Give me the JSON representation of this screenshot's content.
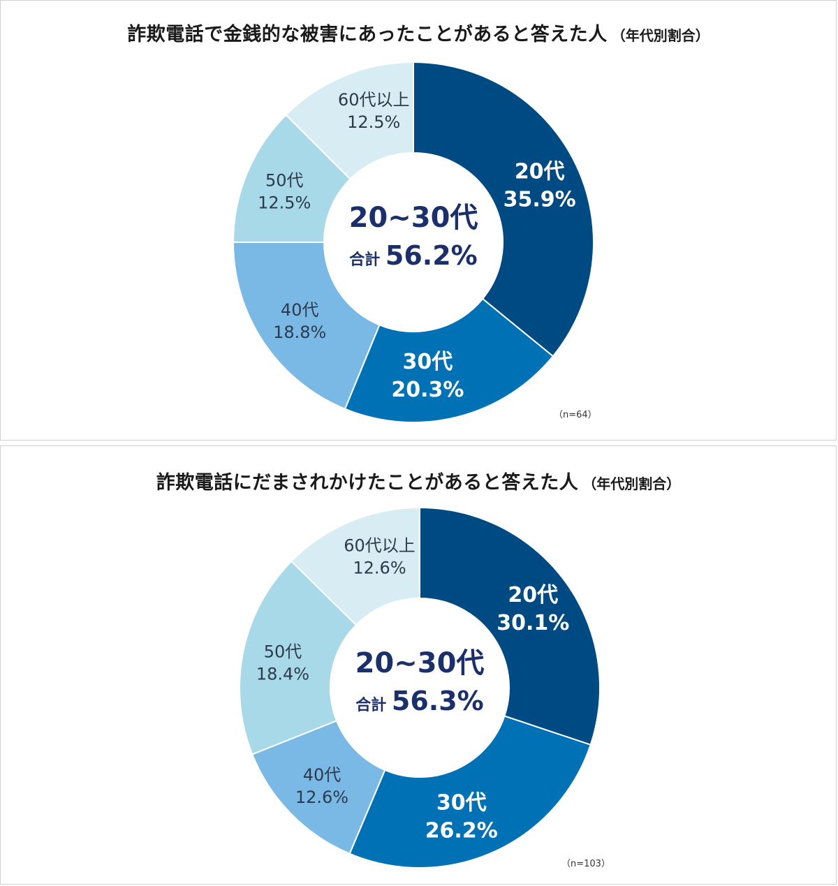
{
  "chart_data": [
    {
      "type": "pie",
      "title": "詐欺電話で金銭的な被害にあったことがあると答えた人",
      "subtitle": "（年代別割合）",
      "categories": [
        "20代",
        "30代",
        "40代",
        "50代",
        "60代以上"
      ],
      "values": [
        35.9,
        20.3,
        18.8,
        12.5,
        12.5
      ],
      "value_labels": [
        "35.9%",
        "20.3%",
        "18.8%",
        "12.5%",
        "12.5%"
      ],
      "colors": [
        "#004a84",
        "#0071b5",
        "#7ab8e6",
        "#a7d9e8",
        "#d7ecf3"
      ],
      "center_title": "20~30代",
      "center_total_prefix": "合計",
      "center_total_value": "56.2%",
      "note": "（n=64）"
    },
    {
      "type": "pie",
      "title": "詐欺電話にだまされかけたことがあると答えた人",
      "subtitle": "（年代別割合）",
      "categories": [
        "20代",
        "30代",
        "40代",
        "50代",
        "60代以上"
      ],
      "values": [
        30.1,
        26.2,
        12.6,
        18.4,
        12.6
      ],
      "value_labels": [
        "30.1%",
        "26.2%",
        "12.6%",
        "18.4%",
        "12.6%"
      ],
      "colors": [
        "#004a84",
        "#0071b5",
        "#7ab8e6",
        "#a7d9e8",
        "#d7ecf3"
      ],
      "center_title": "20~30代",
      "center_total_prefix": "合計",
      "center_total_value": "56.3%",
      "note": "（n=103）"
    }
  ]
}
